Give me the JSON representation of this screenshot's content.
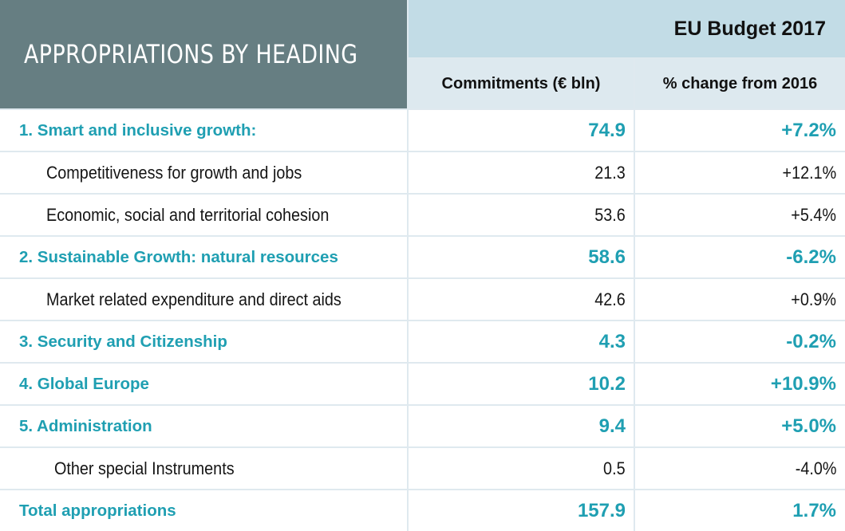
{
  "header": {
    "title": "APPROPRIATIONS BY HEADING",
    "budget": "EU Budget 2017",
    "col_commitments": "Commitments (€ bln)",
    "col_change": "% change from 2016"
  },
  "rows": [
    {
      "label": "1. Smart and inclusive growth:",
      "commitments": "74.9",
      "change": "+7.2%"
    },
    {
      "label": "Competitiveness for growth and jobs",
      "commitments": "21.3",
      "change": "+12.1%"
    },
    {
      "label": "Economic, social and territorial cohesion",
      "commitments": "53.6",
      "change": "+5.4%"
    },
    {
      "label": "2. Sustainable Growth: natural resources",
      "commitments": "58.6",
      "change": "-6.2%"
    },
    {
      "label": "Market related expenditure and direct aids",
      "commitments": "42.6",
      "change": "+0.9%"
    },
    {
      "label": "3. Security and Citizenship",
      "commitments": "4.3",
      "change": "-0.2%"
    },
    {
      "label": "4. Global Europe",
      "commitments": "10.2",
      "change": "+10.9%"
    },
    {
      "label": "5. Administration",
      "commitments": "9.4",
      "change": "+5.0%"
    },
    {
      "label": "Other special Instruments",
      "commitments": "0.5",
      "change": "-4.0%"
    },
    {
      "label": "Total appropriations",
      "commitments": "157.9",
      "change": "1.7%"
    }
  ],
  "colors": {
    "title_bg": "#667e82",
    "budget_bg": "#c2dce6",
    "colhead_bg": "#dde9ef",
    "accent": "#1f9fb2",
    "grid": "#dfe9ef"
  }
}
